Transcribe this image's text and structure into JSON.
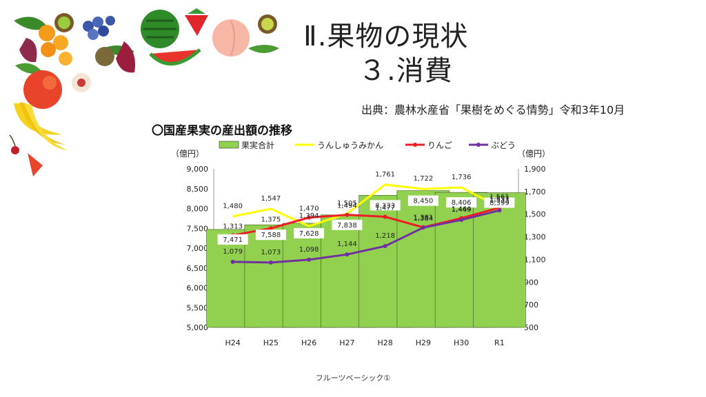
{
  "slide": {
    "title": "Ⅱ.果物の現状",
    "subtitle": "３.消費",
    "source": "出典：農林水産省「果樹をめぐる情勢」令和3年10月",
    "footer": "フルーツベーシック①"
  },
  "chart_data": {
    "type": "bar",
    "title": "〇国産果実の産出額の推移",
    "left_unit": "（億円）",
    "right_unit": "（億円）",
    "categories": [
      "H24",
      "H25",
      "H26",
      "H27",
      "H28",
      "H29",
      "H30",
      "R1"
    ],
    "ylim_left": [
      5000,
      9000
    ],
    "yticks_left": [
      "5,000",
      "5,500",
      "6,000",
      "6,500",
      "7,000",
      "7,500",
      "8,000",
      "8,500",
      "9,000"
    ],
    "ylim_right": [
      500,
      1900
    ],
    "yticks_right": [
      "500",
      "700",
      "900",
      "1,100",
      "1,300",
      "1,500",
      "1,700",
      "1,900"
    ],
    "bar_series": {
      "name": "果実合計",
      "color": "#92d050",
      "values": [
        7471,
        7588,
        7628,
        7838,
        8333,
        8450,
        8406,
        8399
      ],
      "labels": [
        "7,471",
        "7,588",
        "7,628",
        "7,838",
        "8,333",
        "8,450",
        "8,406",
        "8,399"
      ]
    },
    "line_series": [
      {
        "name": "うんしゅうみかん",
        "color": "#ffff00",
        "values": [
          1480,
          1547,
          1394,
          1505,
          1761,
          1722,
          1736,
          1561
        ],
        "labels": [
          "1,480",
          "1,547",
          "1,394",
          "1,505",
          "1,761",
          "1,722",
          "1,736",
          "1,561"
        ]
      },
      {
        "name": "りんご",
        "color": "#ee1c25",
        "values": [
          1313,
          1375,
          1470,
          1494,
          1477,
          1384,
          1464,
          1557
        ],
        "labels": [
          "1,313",
          "1,375",
          "1,470",
          "1,494",
          "1,477",
          "1,384",
          "1,464",
          "1,557"
        ]
      },
      {
        "name": "ぶどう",
        "color": "#7030a0",
        "values": [
          1079,
          1073,
          1098,
          1144,
          1218,
          1381,
          1449,
          1533
        ],
        "labels": [
          "1,079",
          "1,073",
          "1,098",
          "1,144",
          "1,218",
          "1,381",
          "1,449",
          "1,533"
        ]
      }
    ]
  }
}
